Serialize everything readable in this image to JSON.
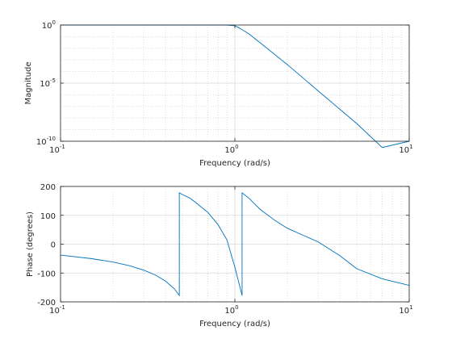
{
  "chart_data": [
    {
      "type": "line",
      "xscale": "log",
      "yscale": "log",
      "xlim": [
        0.1,
        10
      ],
      "ylim": [
        1e-10,
        1
      ],
      "xlabel": "Frequency (rad/s)",
      "ylabel": "Magnitude",
      "grid": true,
      "x_ticks": [
        {
          "base": "10",
          "exp": "-1"
        },
        {
          "base": "10",
          "exp": "0"
        },
        {
          "base": "10",
          "exp": "1"
        }
      ],
      "y_ticks": [
        {
          "base": "10",
          "exp": "-10",
          "value": 1e-10
        },
        {
          "base": "10",
          "exp": "-5",
          "value": 1e-05
        },
        {
          "base": "10",
          "exp": "0",
          "value": 1
        }
      ],
      "series": [
        {
          "color": "#0072bd",
          "x": [
            0.1,
            0.3,
            0.6,
            0.8,
            0.9,
            1.0,
            1.05,
            1.1,
            1.2,
            1.5,
            2,
            3,
            5,
            7,
            10
          ],
          "y": [
            1,
            1,
            1,
            1,
            1,
            0.86,
            0.6,
            0.4,
            0.18,
            0.0125,
            0.00039,
            2.2e-06,
            3.3e-09,
            2.9e-11,
            1e-10
          ]
        }
      ]
    },
    {
      "type": "line",
      "xscale": "log",
      "xlim": [
        0.1,
        10
      ],
      "ylim": [
        -200,
        200
      ],
      "xlabel": "Frequency (rad/s)",
      "ylabel": "Phase (degrees)",
      "grid": true,
      "x_ticks": [
        {
          "base": "10",
          "exp": "-1"
        },
        {
          "base": "10",
          "exp": "0"
        },
        {
          "base": "10",
          "exp": "1"
        }
      ],
      "y_ticks": [
        {
          "label": "200",
          "value": 200
        },
        {
          "label": "100",
          "value": 100
        },
        {
          "label": "0",
          "value": 0
        },
        {
          "label": "-100",
          "value": -100
        },
        {
          "label": "-200",
          "value": -200
        }
      ],
      "series": [
        {
          "color": "#0072bd",
          "x": [
            0.1,
            0.15,
            0.2,
            0.25,
            0.3,
            0.35,
            0.4,
            0.45,
            0.48,
            0.48,
            0.5,
            0.55,
            0.6,
            0.7,
            0.8,
            0.9,
            1.0,
            1.05,
            1.1,
            1.1,
            1.2,
            1.4,
            1.7,
            2,
            3,
            4,
            5,
            7,
            10
          ],
          "y": [
            -38,
            -50,
            -62,
            -75,
            -90,
            -107,
            -128,
            -155,
            -178,
            178,
            172,
            160,
            143,
            110,
            68,
            15,
            -80,
            -130,
            -178,
            178,
            160,
            120,
            82,
            55,
            8,
            -40,
            -85,
            -120,
            -143
          ]
        }
      ]
    }
  ]
}
